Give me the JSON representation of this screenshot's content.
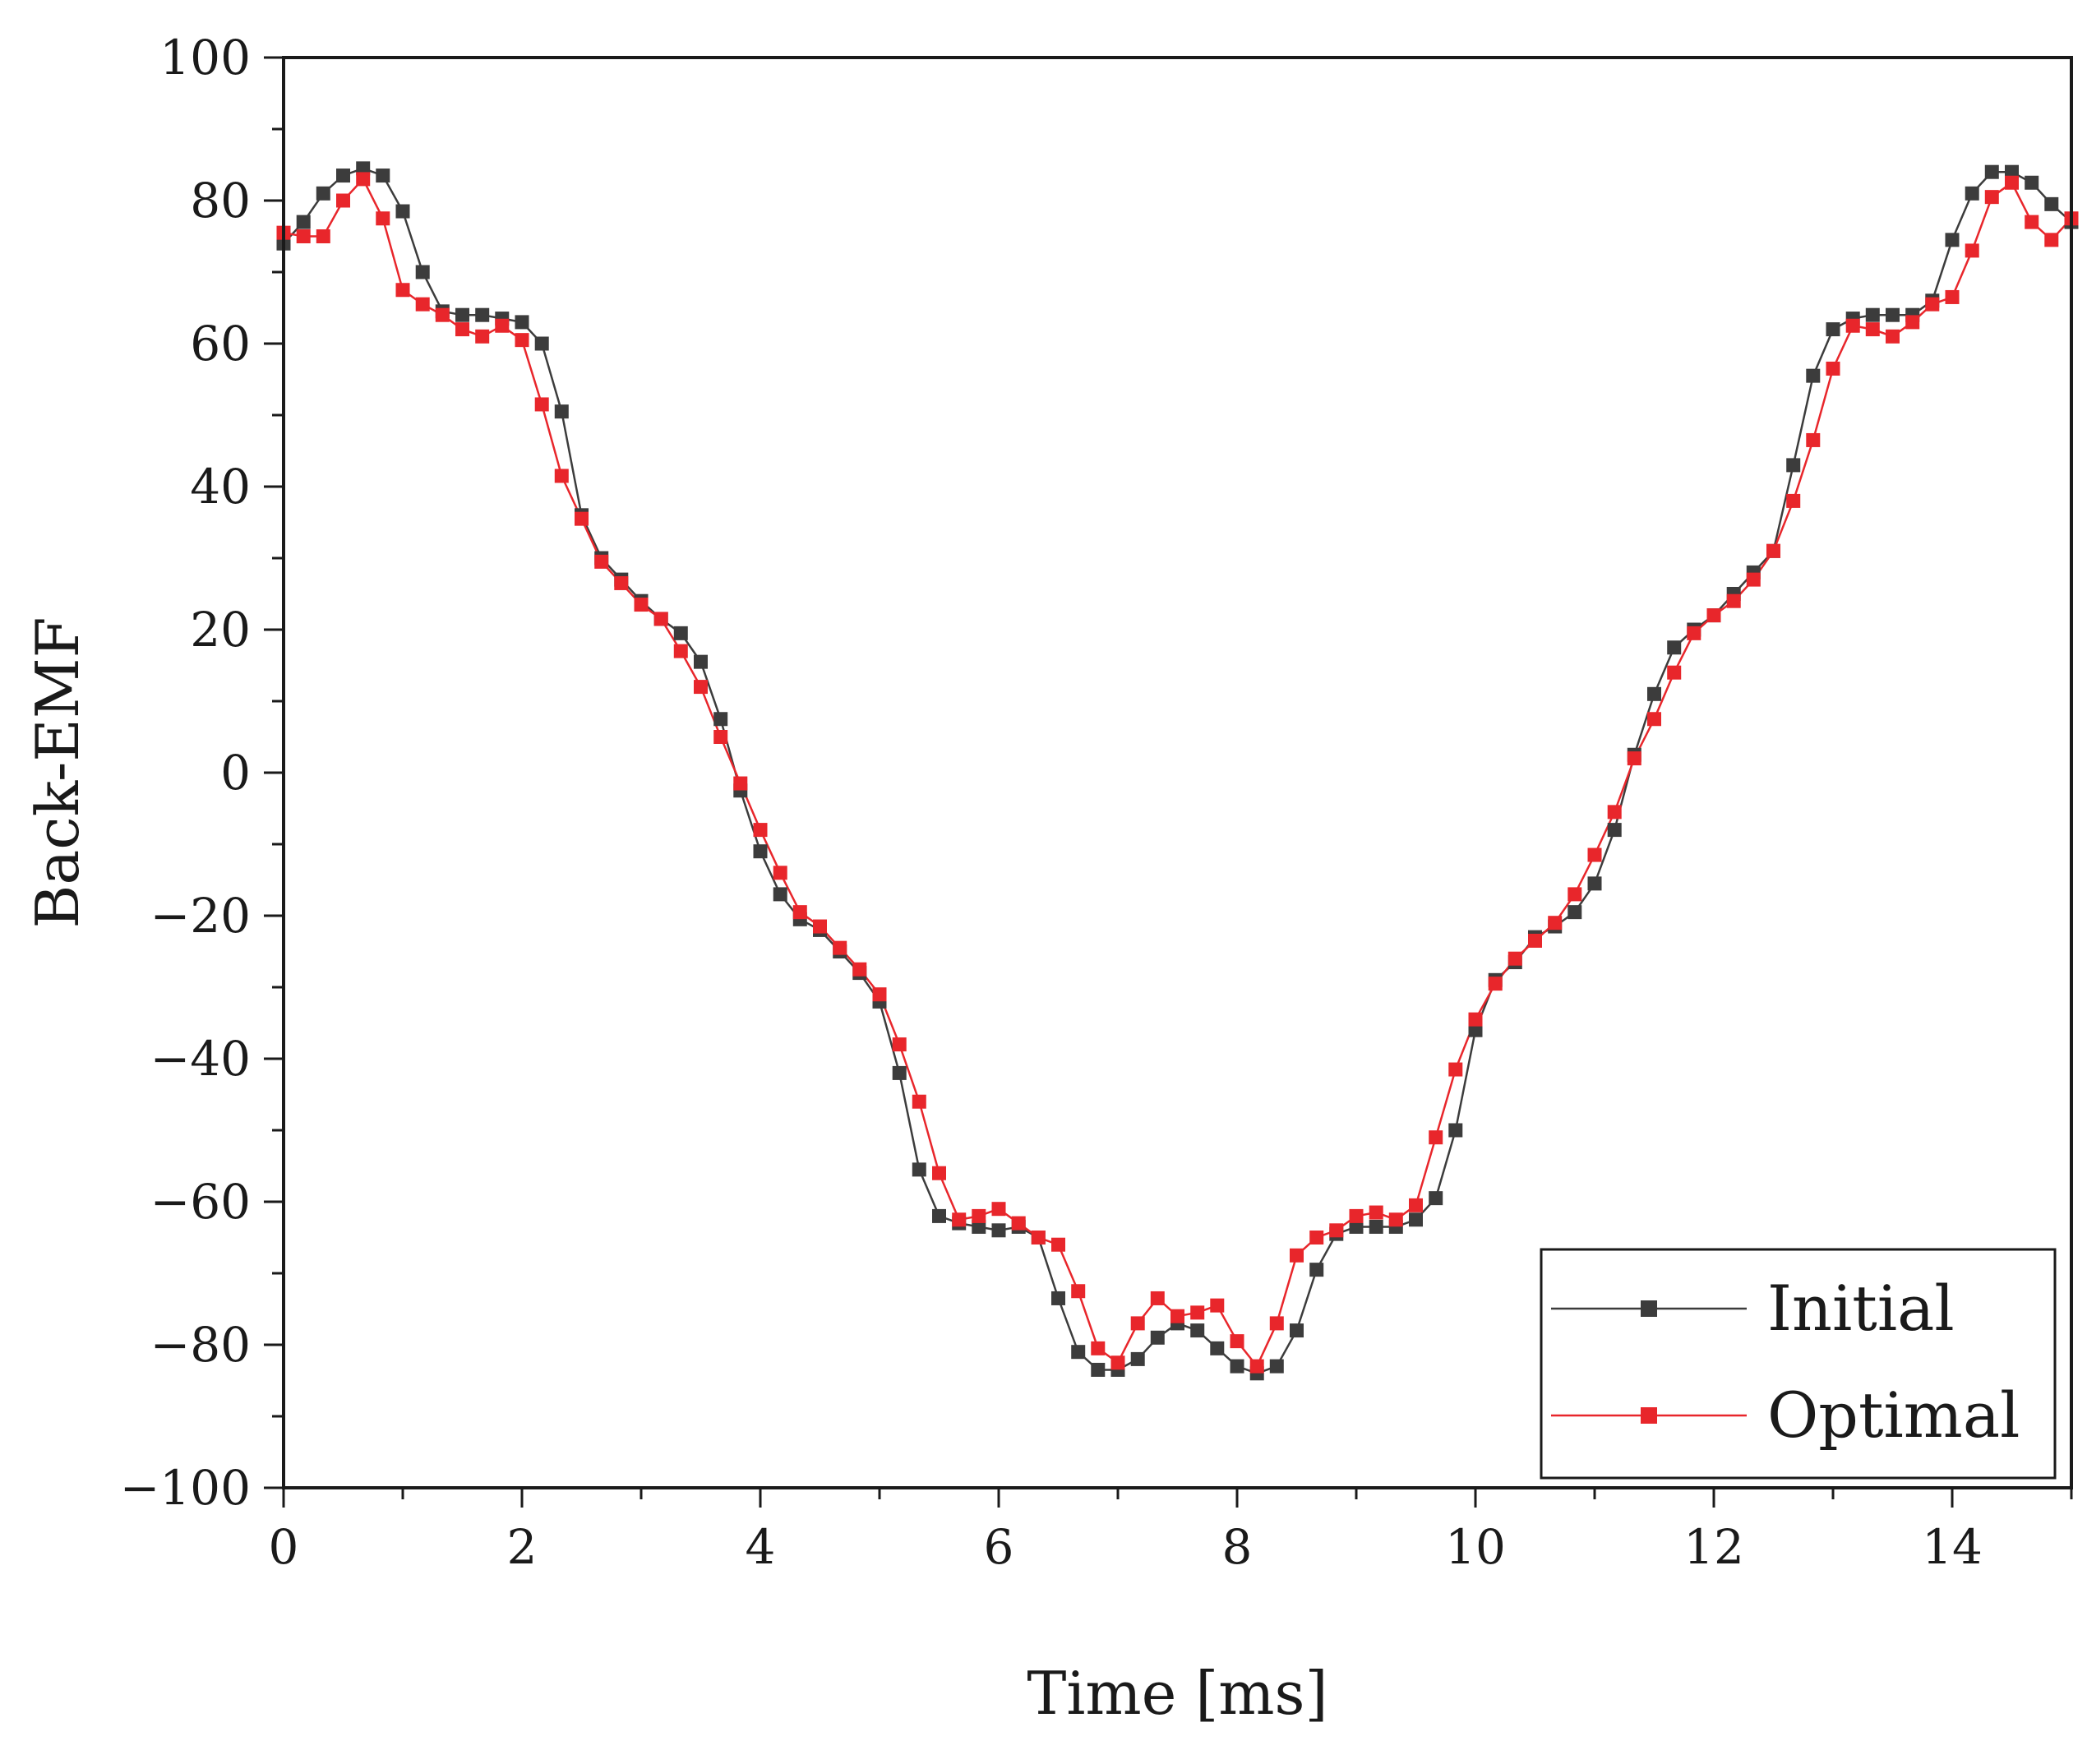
{
  "chart_data": {
    "type": "line",
    "title": "",
    "xlabel": "Time [ms]",
    "ylabel": "Back-EMF",
    "xlim": [
      0,
      15
    ],
    "ylim": [
      -100,
      100
    ],
    "xticks": [
      0,
      2,
      4,
      6,
      8,
      10,
      12,
      14
    ],
    "yticks": [
      100,
      80,
      60,
      40,
      20,
      0,
      -20,
      -40,
      -60,
      -80,
      -100
    ],
    "xtick_labels": [
      "0",
      "2",
      "4",
      "6",
      "8",
      "10",
      "12",
      "14"
    ],
    "ytick_labels": [
      "100",
      "80",
      "60",
      "40",
      "20",
      "0",
      "−20",
      "−40",
      "−60",
      "−80",
      "−100"
    ],
    "grid": false,
    "legend_position": "bottom-right",
    "series": [
      {
        "name": "Initial",
        "color": "#3c3c3c",
        "marker": "square",
        "x": [
          0,
          0.167,
          0.333,
          0.5,
          0.667,
          0.833,
          1.0,
          1.167,
          1.333,
          1.5,
          1.667,
          1.833,
          2.0,
          2.167,
          2.333,
          2.5,
          2.667,
          2.833,
          3.0,
          3.167,
          3.333,
          3.5,
          3.667,
          3.833,
          4.0,
          4.167,
          4.333,
          4.5,
          4.667,
          4.833,
          5.0,
          5.167,
          5.333,
          5.5,
          5.667,
          5.833,
          6.0,
          6.167,
          6.333,
          6.5,
          6.667,
          6.833,
          7.0,
          7.167,
          7.333,
          7.5,
          7.667,
          7.833,
          8.0,
          8.167,
          8.333,
          8.5,
          8.667,
          8.833,
          9.0,
          9.167,
          9.333,
          9.5,
          9.667,
          9.833,
          10.0,
          10.167,
          10.333,
          10.5,
          10.667,
          10.833,
          11.0,
          11.167,
          11.333,
          11.5,
          11.667,
          11.833,
          12.0,
          12.167,
          12.333,
          12.5,
          12.667,
          12.833,
          13.0,
          13.167,
          13.333,
          13.5,
          13.667,
          13.833,
          14.0,
          14.167,
          14.333,
          14.5,
          14.667,
          14.833,
          15.0
        ],
        "y": [
          74,
          77,
          81,
          83.5,
          84.5,
          83.5,
          78.5,
          70,
          64.5,
          64,
          64,
          63.5,
          63,
          60,
          50.5,
          36,
          30,
          27,
          24,
          21.5,
          19.5,
          15.5,
          7.5,
          -2.5,
          -11,
          -17,
          -20.5,
          -22,
          -25,
          -28,
          -32,
          -42,
          -55.5,
          -62,
          -63,
          -63.5,
          -64,
          -63.5,
          -65,
          -73.5,
          -81,
          -83.5,
          -83.5,
          -82,
          -79,
          -77,
          -78,
          -80.5,
          -83,
          -84,
          -83,
          -78,
          -69.5,
          -64.5,
          -63.5,
          -63.5,
          -63.5,
          -62.5,
          -59.5,
          -50,
          -36,
          -29,
          -26.5,
          -23,
          -21.5,
          -19.5,
          -15.5,
          -8,
          2.5,
          11,
          17.5,
          20,
          22,
          25,
          28,
          31,
          43,
          55.5,
          62,
          63.5,
          64,
          64,
          64,
          66,
          74.5,
          81,
          84,
          84,
          82.5,
          79.5,
          77
        ]
      },
      {
        "name": "Optimal",
        "color": "#e8262b",
        "marker": "square",
        "x": [
          0,
          0.167,
          0.333,
          0.5,
          0.667,
          0.833,
          1.0,
          1.167,
          1.333,
          1.5,
          1.667,
          1.833,
          2.0,
          2.167,
          2.333,
          2.5,
          2.667,
          2.833,
          3.0,
          3.167,
          3.333,
          3.5,
          3.667,
          3.833,
          4.0,
          4.167,
          4.333,
          4.5,
          4.667,
          4.833,
          5.0,
          5.167,
          5.333,
          5.5,
          5.667,
          5.833,
          6.0,
          6.167,
          6.333,
          6.5,
          6.667,
          6.833,
          7.0,
          7.167,
          7.333,
          7.5,
          7.667,
          7.833,
          8.0,
          8.167,
          8.333,
          8.5,
          8.667,
          8.833,
          9.0,
          9.167,
          9.333,
          9.5,
          9.667,
          9.833,
          10.0,
          10.167,
          10.333,
          10.5,
          10.667,
          10.833,
          11.0,
          11.167,
          11.333,
          11.5,
          11.667,
          11.833,
          12.0,
          12.167,
          12.333,
          12.5,
          12.667,
          12.833,
          13.0,
          13.167,
          13.333,
          13.5,
          13.667,
          13.833,
          14.0,
          14.167,
          14.333,
          14.5,
          14.667,
          14.833,
          15.0
        ],
        "y": [
          75.5,
          75,
          75,
          80,
          83,
          77.5,
          67.5,
          65.5,
          64,
          62,
          61,
          62.5,
          60.5,
          51.5,
          41.5,
          35.5,
          29.5,
          26.5,
          23.5,
          21.5,
          17,
          12,
          5,
          -1.5,
          -8,
          -14,
          -19.5,
          -21.5,
          -24.5,
          -27.5,
          -31,
          -38,
          -46,
          -56,
          -62.5,
          -62,
          -61,
          -63,
          -65,
          -66,
          -72.5,
          -80.5,
          -82.5,
          -77,
          -73.5,
          -76,
          -75.5,
          -74.5,
          -79.5,
          -83,
          -77,
          -67.5,
          -65,
          -64,
          -62,
          -61.5,
          -62.5,
          -60.5,
          -51,
          -41.5,
          -34.5,
          -29.5,
          -26,
          -23.5,
          -21,
          -17,
          -11.5,
          -5.5,
          2,
          7.5,
          14,
          19.5,
          22,
          24,
          27,
          31,
          38,
          46.5,
          56.5,
          62.5,
          62,
          61,
          63,
          65.5,
          66.5,
          73,
          80.5,
          82.5,
          77,
          74.5,
          77.5
        ]
      }
    ]
  }
}
